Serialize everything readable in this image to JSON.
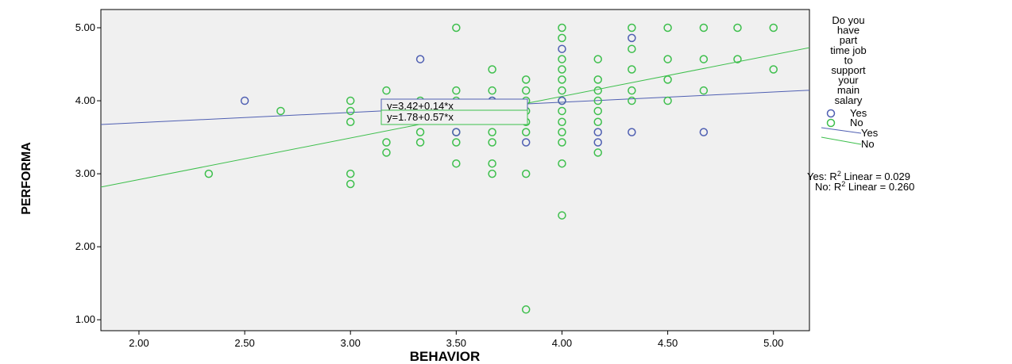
{
  "chart_data": {
    "type": "scatter",
    "xlabel": "BEHAVIOR",
    "ylabel": "PERFORMA",
    "xlim": [
      1.82,
      5.17
    ],
    "ylim": [
      0.85,
      5.25
    ],
    "x_ticks": [
      "2.00",
      "2.50",
      "3.00",
      "3.50",
      "4.00",
      "4.50",
      "5.00"
    ],
    "y_ticks": [
      "1.00",
      "2.00",
      "3.00",
      "4.00",
      "5.00"
    ],
    "legend": {
      "title_lines": [
        "Do you",
        "have",
        "part",
        "time job",
        "to",
        "support",
        "your",
        "main",
        "salary"
      ],
      "marker_labels": [
        "Yes",
        "No"
      ],
      "line_labels": [
        "Yes",
        "No"
      ],
      "placement": "right"
    },
    "r2_labels": {
      "yes": "Yes: R",
      "no": "No: R",
      "sup": "2",
      "suffix_yes": " Linear = 0.029",
      "suffix_no": " Linear = 0.260"
    },
    "series": [
      {
        "name": "Yes",
        "color": "#4f5fb2",
        "points": [
          [
            2.5,
            4.0
          ],
          [
            3.33,
            4.57
          ],
          [
            3.5,
            3.57
          ],
          [
            3.83,
            3.43
          ],
          [
            4.0,
            4.71
          ],
          [
            4.17,
            3.57
          ],
          [
            4.17,
            3.43
          ],
          [
            4.33,
            4.86
          ],
          [
            4.33,
            3.57
          ],
          [
            4.67,
            3.57
          ],
          [
            4.0,
            4.0
          ],
          [
            3.67,
            4.0
          ]
        ],
        "fit": {
          "intercept": 3.42,
          "slope": 0.14,
          "equation": "y=3.42+0.14*x",
          "r2": 0.029
        }
      },
      {
        "name": "No",
        "color": "#3dbf4c",
        "points": [
          [
            2.33,
            3.0
          ],
          [
            2.67,
            3.86
          ],
          [
            3.0,
            4.0
          ],
          [
            3.0,
            3.86
          ],
          [
            3.0,
            3.71
          ],
          [
            3.0,
            3.0
          ],
          [
            3.0,
            2.86
          ],
          [
            3.17,
            4.14
          ],
          [
            3.17,
            3.43
          ],
          [
            3.17,
            3.29
          ],
          [
            3.33,
            4.0
          ],
          [
            3.33,
            3.57
          ],
          [
            3.33,
            3.43
          ],
          [
            3.5,
            5.0
          ],
          [
            3.5,
            4.14
          ],
          [
            3.5,
            4.0
          ],
          [
            3.5,
            3.57
          ],
          [
            3.5,
            3.43
          ],
          [
            3.5,
            3.14
          ],
          [
            3.67,
            4.43
          ],
          [
            3.67,
            4.14
          ],
          [
            3.67,
            4.0
          ],
          [
            3.67,
            3.86
          ],
          [
            3.67,
            3.57
          ],
          [
            3.67,
            3.43
          ],
          [
            3.67,
            3.14
          ],
          [
            3.67,
            3.0
          ],
          [
            3.83,
            4.29
          ],
          [
            3.83,
            4.14
          ],
          [
            3.83,
            4.0
          ],
          [
            3.83,
            3.86
          ],
          [
            3.83,
            3.71
          ],
          [
            3.83,
            3.57
          ],
          [
            3.83,
            3.0
          ],
          [
            3.83,
            1.14
          ],
          [
            4.0,
            5.0
          ],
          [
            4.0,
            4.86
          ],
          [
            4.0,
            4.57
          ],
          [
            4.0,
            4.43
          ],
          [
            4.0,
            4.29
          ],
          [
            4.0,
            4.14
          ],
          [
            4.0,
            4.0
          ],
          [
            4.0,
            3.86
          ],
          [
            4.0,
            3.71
          ],
          [
            4.0,
            3.57
          ],
          [
            4.0,
            3.43
          ],
          [
            4.0,
            3.14
          ],
          [
            4.0,
            2.43
          ],
          [
            4.17,
            4.57
          ],
          [
            4.17,
            4.29
          ],
          [
            4.17,
            4.14
          ],
          [
            4.17,
            4.0
          ],
          [
            4.17,
            3.86
          ],
          [
            4.17,
            3.71
          ],
          [
            4.17,
            3.29
          ],
          [
            4.33,
            5.0
          ],
          [
            4.33,
            4.71
          ],
          [
            4.33,
            4.43
          ],
          [
            4.33,
            4.14
          ],
          [
            4.33,
            4.0
          ],
          [
            4.5,
            5.0
          ],
          [
            4.5,
            4.57
          ],
          [
            4.5,
            4.29
          ],
          [
            4.5,
            4.0
          ],
          [
            4.67,
            5.0
          ],
          [
            4.67,
            4.57
          ],
          [
            4.67,
            4.14
          ],
          [
            4.83,
            5.0
          ],
          [
            4.83,
            4.57
          ],
          [
            5.0,
            5.0
          ],
          [
            5.0,
            4.43
          ]
        ],
        "fit": {
          "intercept": 1.78,
          "slope": 0.57,
          "equation": "y=1.78+0.57*x",
          "r2": 0.26
        }
      }
    ]
  }
}
